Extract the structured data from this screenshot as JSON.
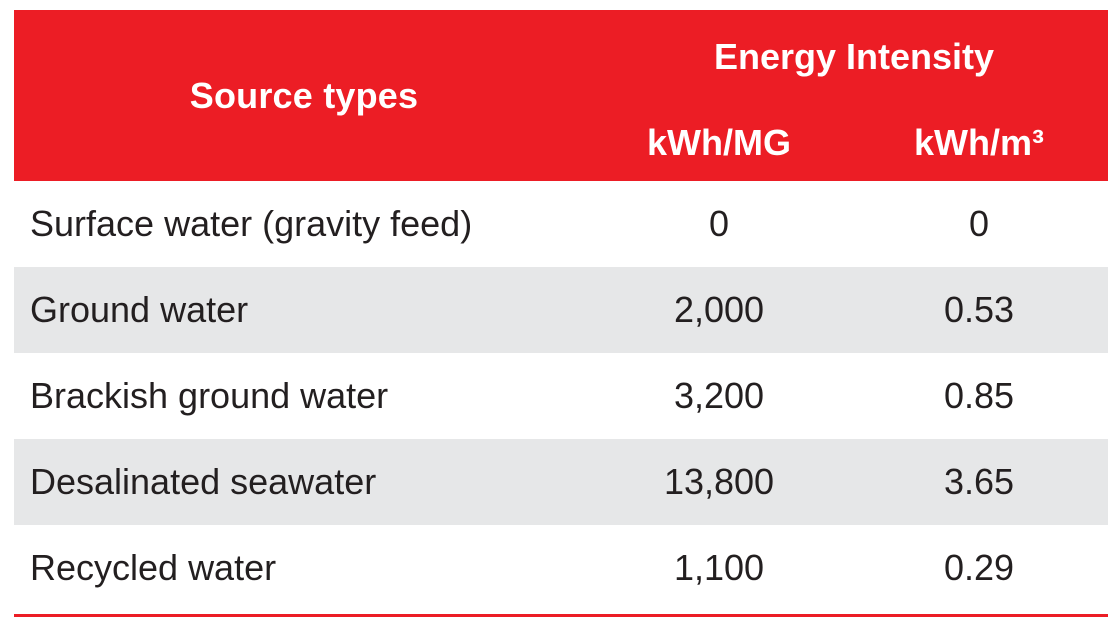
{
  "header": {
    "source_label": "Source types",
    "energy_label": "Energy Intensity",
    "unit_mg": "kWh/MG",
    "unit_m3": "kWh/m³"
  },
  "rows": [
    {
      "source": "Surface water (gravity feed)",
      "kwh_mg": "0",
      "kwh_m3": "0"
    },
    {
      "source": "Ground water",
      "kwh_mg": "2,000",
      "kwh_m3": "0.53"
    },
    {
      "source": "Brackish ground water",
      "kwh_mg": "3,200",
      "kwh_m3": "0.85"
    },
    {
      "source": "Desalinated seawater",
      "kwh_mg": "13,800",
      "kwh_m3": "3.65"
    },
    {
      "source": "Recycled water",
      "kwh_mg": "1,100",
      "kwh_m3": "0.29"
    }
  ],
  "colors": {
    "header_bg": "#ec1d25",
    "shaded_row": "#e6e7e8",
    "text": "#231f20"
  }
}
